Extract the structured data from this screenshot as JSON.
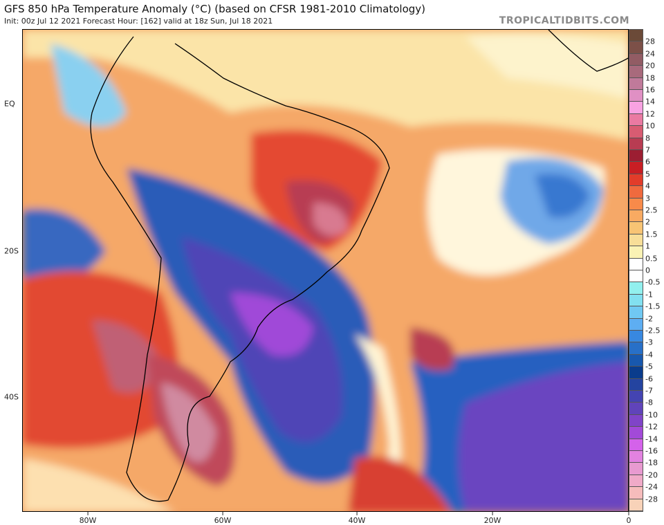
{
  "header": {
    "title": "GFS 850 hPa Temperature Anomaly (°C) (based on CFSR 1981-2010 Climatology)",
    "subtitle": "Init: 00z Jul 12 2021   Forecast Hour: [162]   valid at 18z Sun, Jul 18 2021",
    "brand": "TROPICALTIDBITS.COM"
  },
  "axes": {
    "latitude_labels": [
      "EQ",
      "20S",
      "40S"
    ],
    "longitude_labels": [
      "80W",
      "60W",
      "40W",
      "20W",
      "0"
    ]
  },
  "colorbar": {
    "tick_labels": [
      "28",
      "24",
      "20",
      "18",
      "16",
      "14",
      "12",
      "10",
      "8",
      "7",
      "6",
      "5",
      "4",
      "3",
      "2.5",
      "2",
      "1.5",
      "1",
      "0.5",
      "0",
      "-0.5",
      "-1",
      "-1.5",
      "-2",
      "-2.5",
      "-3",
      "-4",
      "-5",
      "-6",
      "-7",
      "-8",
      "-10",
      "-12",
      "-14",
      "-16",
      "-18",
      "-20",
      "-24",
      "-28"
    ],
    "colors": [
      "#6b4a38",
      "#7c5048",
      "#925c64",
      "#a86a7c",
      "#c07a9a",
      "#e090c4",
      "#f8a2e2",
      "#ea7aa2",
      "#d85c72",
      "#b83c52",
      "#9c1e32",
      "#c81e24",
      "#e23c2a",
      "#f06a3e",
      "#f88a4a",
      "#f8aa62",
      "#f8c474",
      "#f8de98",
      "#faf2b4",
      "#ffffff",
      "#ffffff",
      "#92f0ee",
      "#82e0f0",
      "#70c8f2",
      "#5eaef2",
      "#3888e0",
      "#2870c8",
      "#1858ae",
      "#0a3c8c",
      "#2444a0",
      "#4444b2",
      "#6044ba",
      "#8044c8",
      "#a24ad8",
      "#d462ea",
      "#e282e0",
      "#e89ad0",
      "#f0aac8",
      "#f6bcbc",
      "#f8d2b8"
    ]
  }
}
